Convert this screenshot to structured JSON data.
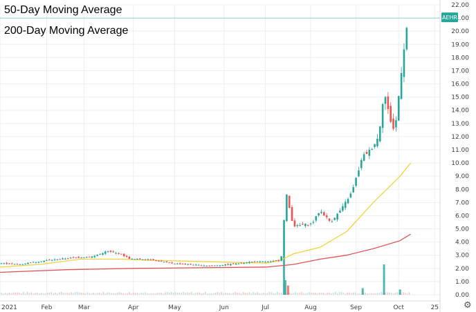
{
  "chart_data": {
    "type": "candlestick",
    "symbol": "AEHR",
    "last_price": 21.0,
    "ylim": [
      0,
      22
    ],
    "y_ticks": [
      "0.00",
      "1.00",
      "2.00",
      "3.00",
      "4.00",
      "5.00",
      "6.00",
      "7.00",
      "8.00",
      "9.00",
      "10.00",
      "11.00",
      "12.00",
      "13.00",
      "14.00",
      "15.00",
      "16.00",
      "17.00",
      "18.00",
      "19.00",
      "20.00",
      "21.00",
      "22.00"
    ],
    "x_ticks": [
      "2021",
      "Feb",
      "Mar",
      "Apr",
      "May",
      "Jun",
      "Jul",
      "Aug",
      "Sep",
      "Oct",
      "25"
    ],
    "grid": true,
    "legend_position": "top-left",
    "colors": {
      "up": "#26a69a",
      "down": "#ef5350",
      "ma50": "#f2d13c",
      "ma200": "#e05252",
      "price_line": "#26a69a",
      "grid": "#eeeeee"
    },
    "legend": [
      {
        "name": "50-Day Moving Average",
        "color": "#e8c51a"
      },
      {
        "name": "200-Day Moving Average",
        "color": "#e02020"
      }
    ],
    "price_path": [
      {
        "t": 0,
        "p": 2.4
      },
      {
        "t": 14,
        "p": 2.3
      },
      {
        "t": 34,
        "p": 2.6
      },
      {
        "t": 54,
        "p": 2.8
      },
      {
        "t": 70,
        "p": 2.9
      },
      {
        "t": 80,
        "p": 3.3
      },
      {
        "t": 90,
        "p": 3.1
      },
      {
        "t": 98,
        "p": 2.7
      },
      {
        "t": 112,
        "p": 2.7
      },
      {
        "t": 128,
        "p": 2.4
      },
      {
        "t": 140,
        "p": 2.3
      },
      {
        "t": 158,
        "p": 2.2
      },
      {
        "t": 172,
        "p": 2.3
      },
      {
        "t": 188,
        "p": 2.5
      },
      {
        "t": 200,
        "p": 2.5
      },
      {
        "t": 210,
        "p": 2.6
      },
      {
        "t": 212,
        "p": 3.3
      },
      {
        "t": 214,
        "p": 8.0
      },
      {
        "t": 220,
        "p": 5.2
      },
      {
        "t": 234,
        "p": 5.4
      },
      {
        "t": 240,
        "p": 6.4
      },
      {
        "t": 248,
        "p": 5.5
      },
      {
        "t": 256,
        "p": 6.5
      },
      {
        "t": 264,
        "p": 7.8
      },
      {
        "t": 272,
        "p": 10.5
      },
      {
        "t": 278,
        "p": 11.0
      },
      {
        "t": 284,
        "p": 12.0
      },
      {
        "t": 288,
        "p": 15.5
      },
      {
        "t": 292,
        "p": 13.5
      },
      {
        "t": 296,
        "p": 12.3
      },
      {
        "t": 300,
        "p": 16.0
      },
      {
        "t": 302,
        "p": 18.0
      },
      {
        "t": 306,
        "p": 21.0
      }
    ],
    "ma50": [
      {
        "t": 0,
        "p": 2.1
      },
      {
        "t": 30,
        "p": 2.3
      },
      {
        "t": 60,
        "p": 2.7
      },
      {
        "t": 90,
        "p": 2.7
      },
      {
        "t": 120,
        "p": 2.6
      },
      {
        "t": 160,
        "p": 2.5
      },
      {
        "t": 200,
        "p": 2.4
      },
      {
        "t": 210,
        "p": 2.6
      },
      {
        "t": 220,
        "p": 3.1
      },
      {
        "t": 240,
        "p": 3.6
      },
      {
        "t": 260,
        "p": 4.8
      },
      {
        "t": 280,
        "p": 7.0
      },
      {
        "t": 300,
        "p": 9.0
      },
      {
        "t": 308,
        "p": 10.0
      }
    ],
    "ma200": [
      {
        "t": 0,
        "p": 1.7
      },
      {
        "t": 50,
        "p": 1.9
      },
      {
        "t": 100,
        "p": 2.0
      },
      {
        "t": 150,
        "p": 2.05
      },
      {
        "t": 200,
        "p": 2.1
      },
      {
        "t": 220,
        "p": 2.3
      },
      {
        "t": 240,
        "p": 2.7
      },
      {
        "t": 260,
        "p": 3.0
      },
      {
        "t": 280,
        "p": 3.5
      },
      {
        "t": 300,
        "p": 4.1
      },
      {
        "t": 308,
        "p": 4.6
      }
    ],
    "volume_spikes": [
      {
        "t": 213,
        "v": 3.0,
        "color": "#26a69a"
      },
      {
        "t": 214,
        "v": 1.1,
        "color": "#26a69a"
      },
      {
        "t": 216,
        "v": 0.7,
        "color": "#ef5350"
      },
      {
        "t": 272,
        "v": 0.5,
        "color": "#26a69a"
      },
      {
        "t": 288,
        "v": 2.3,
        "color": "#26a69a"
      },
      {
        "t": 300,
        "v": 0.4,
        "color": "#26a69a"
      }
    ]
  }
}
